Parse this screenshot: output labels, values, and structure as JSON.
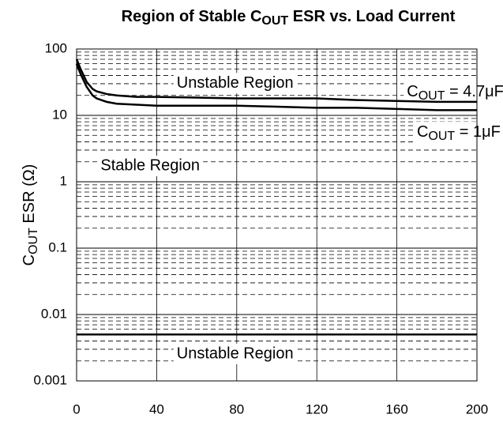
{
  "chart_data": {
    "type": "line",
    "title": [
      "Region of Stable C",
      "OUT",
      " ESR vs. Load Current"
    ],
    "ylabel": [
      "C",
      "OUT",
      " ESR (Ω)"
    ],
    "x": [
      0,
      2,
      5,
      8,
      10,
      15,
      20,
      30,
      40,
      60,
      80,
      100,
      120,
      140,
      160,
      180,
      200
    ],
    "series": [
      {
        "color": "#000000",
        "values": [
          70,
          50,
          32,
          25,
          23,
          21,
          20,
          19,
          19,
          18.5,
          18,
          18,
          18,
          17,
          16.5,
          16,
          16
        ]
      },
      {
        "color": "#000000",
        "values": [
          60,
          42,
          27,
          20,
          18,
          16,
          15,
          14.5,
          14,
          14,
          14,
          13.5,
          13,
          13,
          12.5,
          12,
          12
        ]
      }
    ],
    "boundary": {
      "value": 0.005,
      "color": "#000000"
    },
    "annotations": [
      {
        "text": [
          "Unstable Region"
        ],
        "x": 50,
        "y": 30
      },
      {
        "text": [
          "C",
          "OUT",
          " = 4.7μF"
        ],
        "x": 165,
        "y": 22
      },
      {
        "text": [
          "C",
          "OUT",
          " = 1μF"
        ],
        "x": 170,
        "y": 5.5
      },
      {
        "text": [
          "Stable Region"
        ],
        "x": 12,
        "y": 1.7
      },
      {
        "text": [
          "Unstable Region"
        ],
        "x": 50,
        "y": 0.0025
      }
    ],
    "xlim": [
      0,
      200
    ],
    "xticks": [
      0,
      40,
      80,
      120,
      160,
      200
    ],
    "ylim": [
      0.001,
      100
    ],
    "yticks": [
      0.001,
      0.01,
      0.1,
      1,
      10,
      100
    ],
    "log_y": true,
    "grid": true,
    "minor_grid": true
  }
}
